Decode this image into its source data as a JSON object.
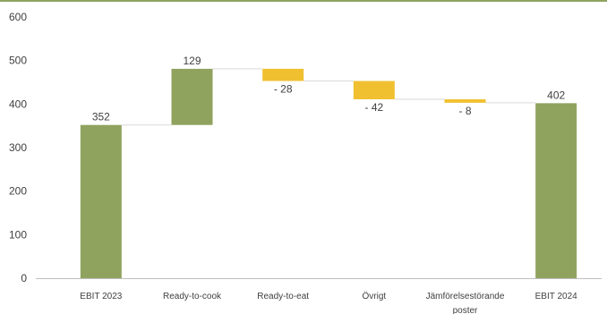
{
  "chart_data": {
    "type": "bar",
    "subtype": "waterfall",
    "categories": [
      "EBIT 2023",
      "Ready-to-cook",
      "Ready-to-eat",
      "Övrigt",
      "Jämförelsestörande poster",
      "EBIT 2024"
    ],
    "category_lines": [
      [
        "EBIT 2023"
      ],
      [
        "Ready-to-cook"
      ],
      [
        "Ready-to-eat"
      ],
      [
        "Övrigt"
      ],
      [
        "Jämförelsestörande",
        "poster"
      ],
      [
        "EBIT 2024"
      ]
    ],
    "values": [
      352,
      129,
      -28,
      -42,
      -8,
      402
    ],
    "kinds": [
      "total",
      "delta",
      "delta",
      "delta",
      "delta",
      "total"
    ],
    "data_labels": [
      "352",
      "129",
      "- 28",
      "- 42",
      "- 8",
      "402"
    ],
    "ylim": [
      0,
      600
    ],
    "yticks": [
      "0",
      "100",
      "200",
      "300",
      "400",
      "500",
      "600"
    ],
    "grid": false,
    "legend": "none",
    "colors": {
      "total": "#8fa35f",
      "increase": "#8fa35f",
      "decrease": "#f0c030",
      "connector": "#d9d9d9",
      "axis": "#bfbfbf",
      "top_border": "#8fa35f"
    }
  }
}
